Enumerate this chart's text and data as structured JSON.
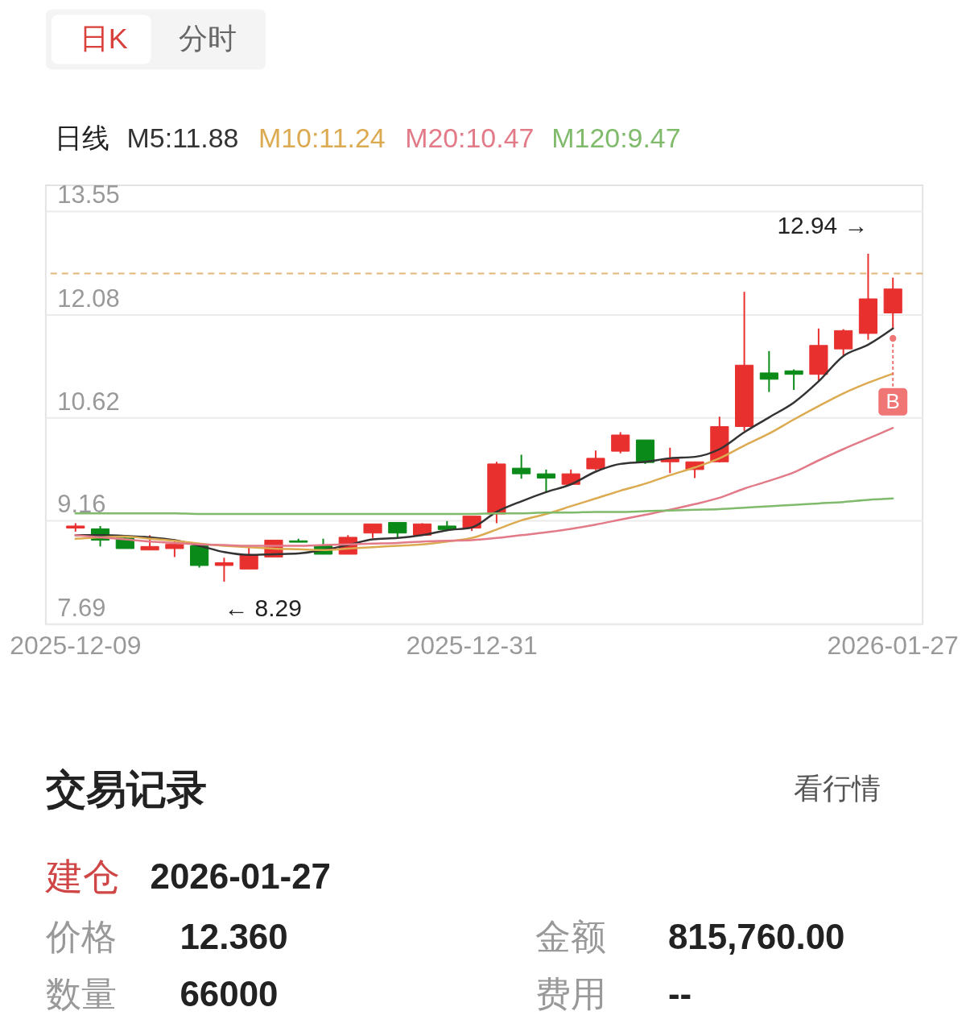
{
  "chart_data": [
    {
      "type": "candlestick",
      "annotations": [
        "日K",
        "分时",
        "12.94 →",
        "← 8.29",
        {
          "text": "B",
          "x": "2026-01-27",
          "y": 11.74
        }
      ],
      "legend_title": "日线",
      "legend": "top left",
      "categories": [
        "2025-12-09",
        null,
        null,
        null,
        null,
        null,
        null,
        null,
        null,
        null,
        null,
        null,
        null,
        null,
        null,
        null,
        "2025-12-31",
        null,
        null,
        null,
        null,
        null,
        null,
        null,
        null,
        null,
        null,
        null,
        null,
        null,
        null,
        null,
        null,
        "2026-01-27"
      ],
      "ohlc": [
        [
          9.05,
          9.12,
          9.0,
          9.08
        ],
        [
          9.04,
          9.08,
          8.79,
          8.88
        ],
        [
          8.91,
          8.95,
          8.76,
          8.76
        ],
        [
          8.74,
          8.95,
          8.74,
          8.79
        ],
        [
          8.76,
          8.89,
          8.64,
          8.82
        ],
        [
          8.8,
          8.8,
          8.49,
          8.52
        ],
        [
          8.52,
          8.63,
          8.29,
          8.56
        ],
        [
          8.47,
          8.77,
          8.47,
          8.67
        ],
        [
          8.64,
          8.88,
          8.64,
          8.88
        ],
        [
          8.87,
          8.9,
          8.85,
          8.85
        ],
        [
          8.8,
          8.9,
          8.68,
          8.68
        ],
        [
          8.68,
          8.95,
          8.68,
          8.92
        ],
        [
          8.98,
          9.11,
          8.91,
          9.11
        ],
        [
          9.13,
          9.13,
          8.92,
          8.98
        ],
        [
          8.95,
          9.12,
          8.95,
          9.11
        ],
        [
          9.08,
          9.15,
          9.01,
          9.03
        ],
        [
          9.05,
          9.22,
          9.01,
          9.22
        ],
        [
          9.25,
          9.99,
          9.12,
          9.96
        ],
        [
          9.9,
          10.09,
          9.75,
          9.82
        ],
        [
          9.82,
          9.88,
          9.55,
          9.76
        ],
        [
          9.67,
          9.88,
          9.66,
          9.82
        ],
        [
          9.89,
          10.15,
          9.87,
          10.04
        ],
        [
          10.14,
          10.41,
          10.11,
          10.37
        ],
        [
          10.3,
          10.3,
          9.96,
          9.98
        ],
        [
          9.99,
          10.19,
          9.83,
          10.03
        ],
        [
          9.88,
          9.99,
          9.76,
          9.99
        ],
        [
          9.99,
          10.63,
          9.98,
          10.49
        ],
        [
          10.49,
          12.4,
          10.43,
          11.36
        ],
        [
          11.25,
          11.56,
          10.98,
          11.16
        ],
        [
          11.28,
          11.3,
          11.01,
          11.23
        ],
        [
          11.23,
          11.88,
          11.14,
          11.64
        ],
        [
          11.59,
          11.87,
          11.5,
          11.85
        ],
        [
          11.81,
          12.94,
          11.72,
          12.3
        ],
        [
          12.1,
          12.6,
          11.87,
          12.44
        ]
      ],
      "colors": [
        "#e8312f",
        "#0a8a18",
        "#0a8a18",
        "#e8312f",
        "#e8312f",
        "#0a8a18",
        "#e8312f",
        "#e8312f",
        "#e8312f",
        "#0a8a18",
        "#0a8a18",
        "#e8312f",
        "#e8312f",
        "#0a8a18",
        "#e8312f",
        "#0a8a18",
        "#e8312f",
        "#e8312f",
        "#0a8a18",
        "#0a8a18",
        "#e8312f",
        "#e8312f",
        "#e8312f",
        "#0a8a18",
        "#e8312f",
        "#e8312f",
        "#e8312f",
        "#e8312f",
        "#0a8a18",
        "#0a8a18",
        "#e8312f",
        "#e8312f",
        "#e8312f",
        "#e8312f"
      ],
      "series": [
        {
          "name": "M5:11.88",
          "type": "line",
          "color": "#333333",
          "values": [
            8.95,
            8.95,
            8.94,
            8.92,
            8.88,
            8.8,
            8.71,
            8.67,
            8.68,
            8.69,
            8.74,
            8.81,
            8.89,
            8.91,
            8.95,
            9.02,
            9.06,
            9.28,
            9.43,
            9.56,
            9.67,
            9.85,
            9.96,
            9.99,
            10.04,
            10.06,
            10.17,
            10.41,
            10.62,
            10.83,
            11.13,
            11.49,
            11.65,
            11.88
          ]
        },
        {
          "name": "M10:11.24",
          "type": "line",
          "color": "#dcaa50",
          "values": [
            8.9,
            8.92,
            8.93,
            8.9,
            8.87,
            8.83,
            8.8,
            8.78,
            8.76,
            8.75,
            8.74,
            8.76,
            8.78,
            8.8,
            8.82,
            8.86,
            8.91,
            9.03,
            9.16,
            9.25,
            9.36,
            9.47,
            9.58,
            9.68,
            9.8,
            9.91,
            10.04,
            10.22,
            10.39,
            10.59,
            10.78,
            10.96,
            11.11,
            11.24
          ]
        },
        {
          "name": "M20:10.47",
          "type": "line",
          "color": "#e27a88",
          "values": [
            8.95,
            8.92,
            8.89,
            8.86,
            8.84,
            8.82,
            8.81,
            8.8,
            8.8,
            8.8,
            8.81,
            8.82,
            8.83,
            8.84,
            8.86,
            8.87,
            8.88,
            8.91,
            8.95,
            8.99,
            9.04,
            9.1,
            9.17,
            9.24,
            9.31,
            9.39,
            9.48,
            9.61,
            9.72,
            9.84,
            10.01,
            10.17,
            10.32,
            10.47
          ]
        },
        {
          "name": "M120:9.47",
          "type": "line",
          "color": "#80bb6c",
          "values": [
            9.26,
            9.26,
            9.26,
            9.26,
            9.26,
            9.25,
            9.25,
            9.25,
            9.25,
            9.25,
            9.25,
            9.25,
            9.25,
            9.25,
            9.25,
            9.25,
            9.25,
            9.26,
            9.26,
            9.27,
            9.27,
            9.28,
            9.28,
            9.29,
            9.3,
            9.31,
            9.32,
            9.34,
            9.36,
            9.38,
            9.4,
            9.42,
            9.45,
            9.47
          ]
        }
      ],
      "ylim": [
        7.69,
        13.91
      ],
      "yticks": [
        7.69,
        9.16,
        10.62,
        12.08,
        13.55
      ],
      "ref_lines": [
        {
          "axis": "y",
          "value": 12.66,
          "color": "#e3b679",
          "line_style": "dashed"
        }
      ],
      "grid": "y"
    },
    {
      "type": "other",
      "title": "交易记录",
      "annotations": [
        "看行情",
        "建仓",
        "2026-01-27",
        "价格",
        "12.360",
        "金额",
        "815,760.00",
        "数量",
        "66000",
        "费用",
        "--"
      ]
    }
  ]
}
